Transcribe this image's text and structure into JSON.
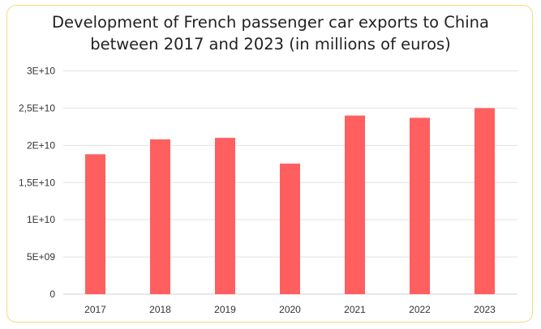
{
  "chart_data": {
    "type": "bar",
    "title_lines": [
      "Development of French passenger car exports to China",
      "between 2017 and 2023 (in millions of euros)"
    ],
    "categories": [
      "2017",
      "2018",
      "2019",
      "2020",
      "2021",
      "2022",
      "2023"
    ],
    "values": [
      18800000000.0,
      20800000000.0,
      21000000000.0,
      17550000000.0,
      24000000000.0,
      23700000000.0,
      25000000000.0
    ],
    "ylim": [
      0,
      30000000000.0
    ],
    "yticks": [
      0,
      5000000000.0,
      10000000000.0,
      15000000000.0,
      20000000000.0,
      25000000000.0,
      30000000000.0
    ],
    "ytick_labels": [
      "0",
      "5E+09",
      "1E+10",
      "1,5E+10",
      "2E+10",
      "2,5E+10",
      "3E+10"
    ],
    "xlabel": "",
    "ylabel": "",
    "grid": true,
    "bar_color": "#ff5f5f",
    "border_color": "#f2dc7e"
  }
}
